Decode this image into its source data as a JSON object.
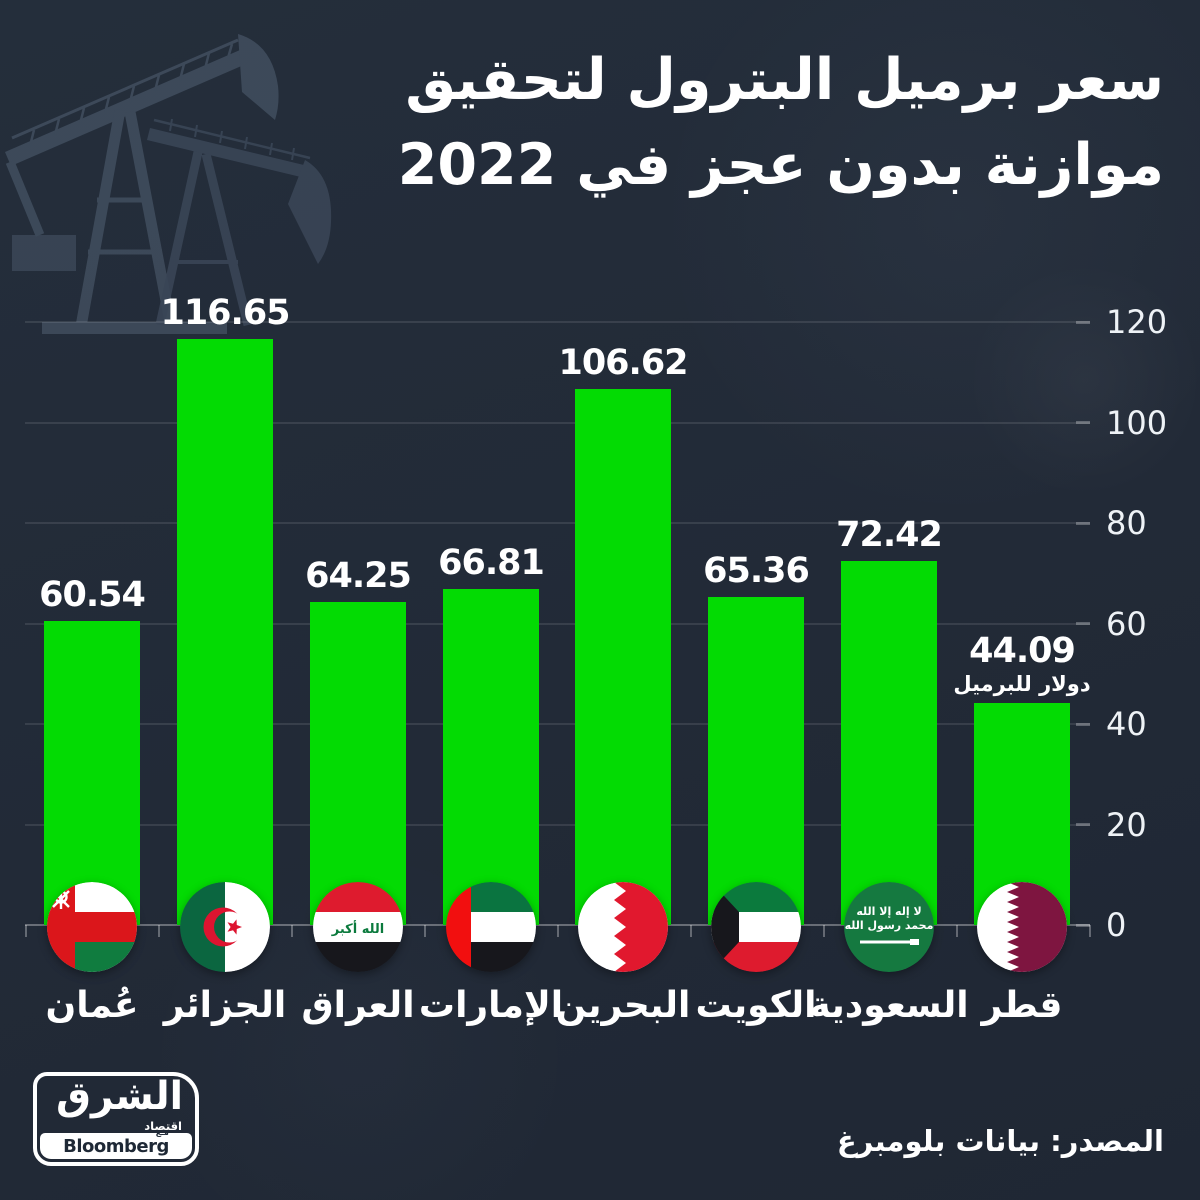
{
  "title": {
    "line1": "سعر برميل البترول لتحقيق",
    "line2": "موازنة بدون عجز في 2022"
  },
  "chart_data": {
    "type": "bar",
    "title": "سعر برميل البترول لتحقيق موازنة بدون عجز في 2022",
    "categories": [
      "عُمان",
      "الجزائر",
      "العراق",
      "الإمارات",
      "البحرين",
      "الكويت",
      "السعودية",
      "قطر"
    ],
    "ids": [
      "oman",
      "algeria",
      "iraq",
      "uae",
      "bahrain",
      "kuwait",
      "saudi-arabia",
      "qatar"
    ],
    "values": [
      60.54,
      116.65,
      64.25,
      66.81,
      106.62,
      65.36,
      72.42,
      44.09
    ],
    "value_labels": [
      "60.54",
      "116.65",
      "64.25",
      "66.81",
      "106.62",
      "65.36",
      "72.42",
      "44.09"
    ],
    "flags": [
      "oman-flag-icon",
      "algeria-flag-icon",
      "iraq-flag-icon",
      "uae-flag-icon",
      "bahrain-flag-icon",
      "kuwait-flag-icon",
      "saudi-arabia-flag-icon",
      "qatar-flag-icon"
    ],
    "unit_note": "دولار للبرميل",
    "unit_note_index": 7,
    "ylim": [
      0,
      120
    ],
    "yticks": [
      0,
      20,
      40,
      60,
      80,
      100,
      120
    ],
    "yticks_labels": [
      "0",
      "20",
      "40",
      "60",
      "80",
      "100",
      "120"
    ],
    "grid": true,
    "legend_position": "none",
    "bar_color": "#03DB03"
  },
  "source": "المصدر: بيانات بلومبرغ",
  "logo": {
    "brand": "الشرق",
    "sub": "اقتصاد",
    "with_label": "مـع",
    "partner": "Bloomberg"
  },
  "colors": {
    "background": "#222A36",
    "bar": "#03DB03",
    "text": "#FFFFFF",
    "grid": "rgba(255,255,255,0.10)"
  }
}
